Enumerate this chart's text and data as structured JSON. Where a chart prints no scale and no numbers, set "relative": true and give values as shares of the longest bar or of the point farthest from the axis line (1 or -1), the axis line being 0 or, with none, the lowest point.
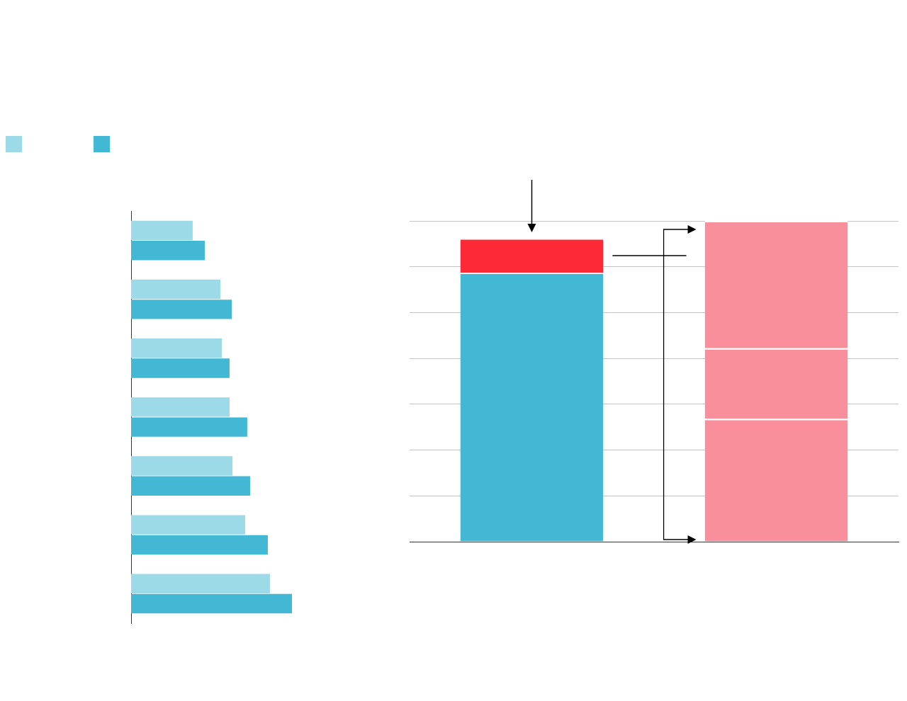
{
  "chart_data": [
    {
      "type": "bar",
      "orientation": "horizontal",
      "relative": true,
      "categories": [
        null,
        null,
        null,
        null,
        null,
        null,
        null
      ],
      "series": [
        {
          "color": "#9cdae8",
          "values": [
            0.383,
            0.555,
            0.564,
            0.612,
            0.63,
            0.709,
            0.863
          ]
        },
        {
          "color": "#42b8d4",
          "values": [
            0.458,
            0.626,
            0.612,
            0.722,
            0.74,
            0.85,
            1
          ]
        }
      ]
    },
    {
      "type": "bar",
      "stacked": true,
      "relative": true,
      "grid": "y",
      "categories": [
        null,
        null
      ],
      "series": [
        {
          "color": "#42b8d4",
          "values": [
            0.839,
            null
          ]
        },
        {
          "color": "#fc2a36",
          "values": [
            0.107,
            null
          ]
        },
        {
          "color": "#f98f9a",
          "values": [
            null,
            0.383
          ]
        },
        {
          "color": "#f98f9a",
          "values": [
            null,
            0.22
          ]
        },
        {
          "color": "#f98f9a",
          "values": [
            null,
            0.397
          ]
        }
      ]
    }
  ]
}
